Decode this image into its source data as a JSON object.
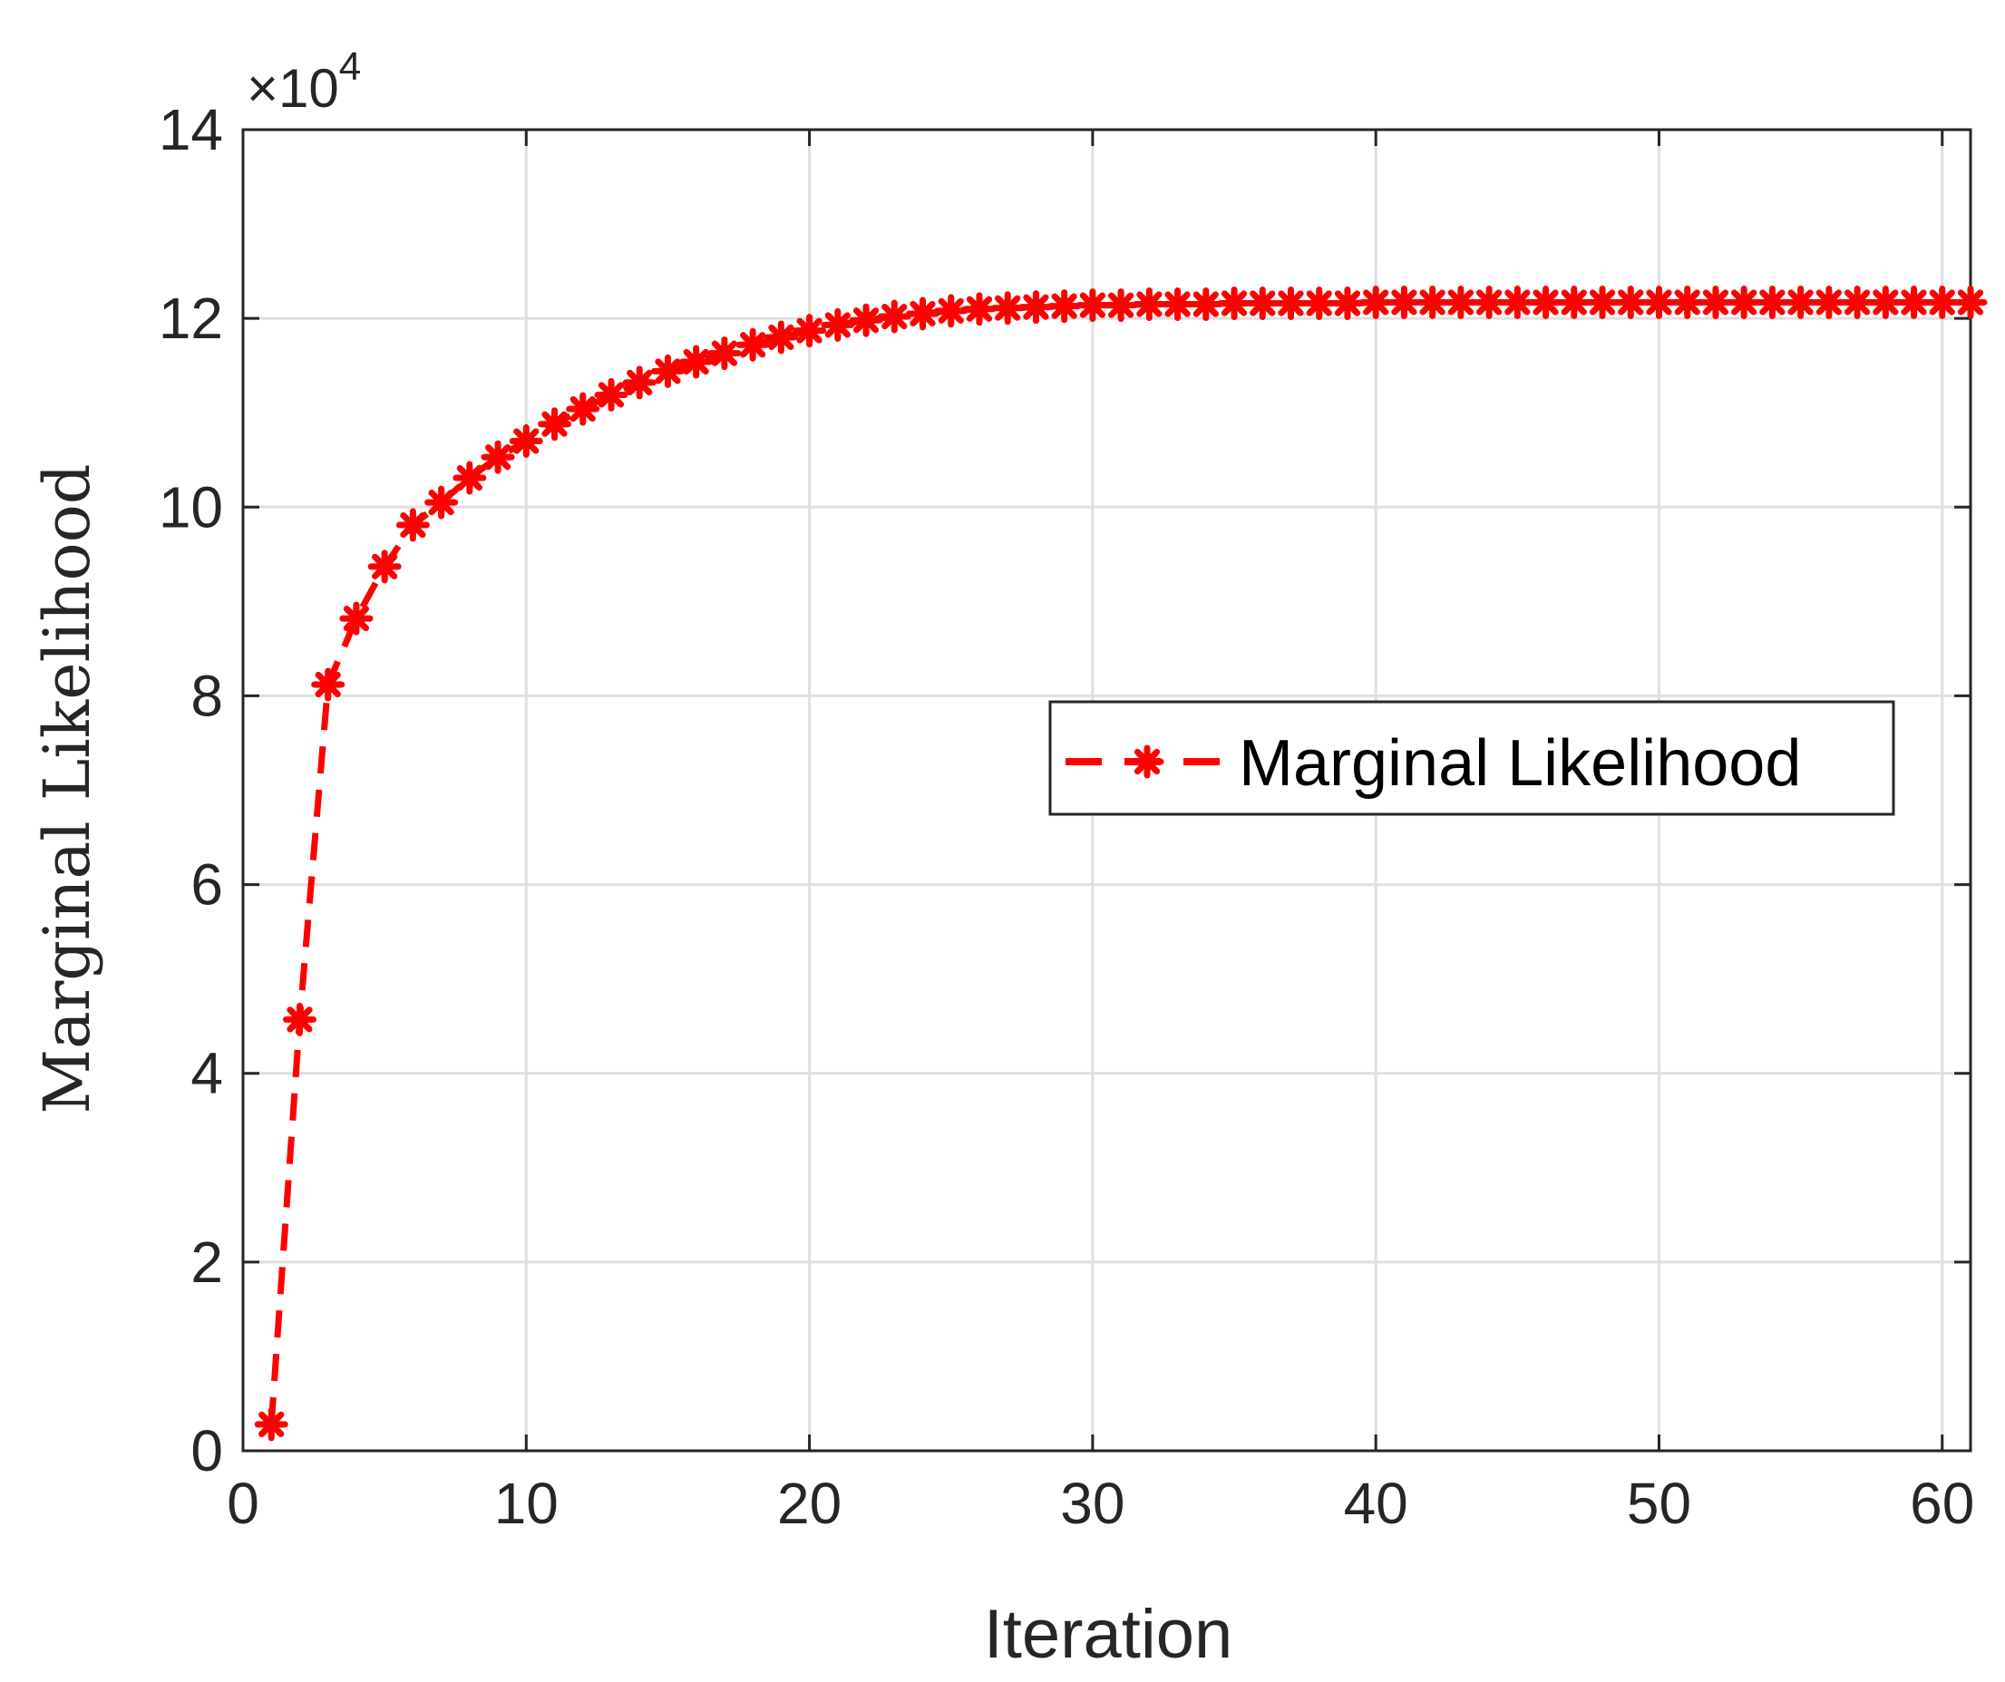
{
  "chart_data": {
    "type": "line",
    "xlabel": "Iteration",
    "ylabel": "Marginal Likelihood",
    "y_exponent_label": "×10",
    "y_exponent_power": "4",
    "y_multiplier": 10000,
    "xlim": [
      0,
      61
    ],
    "ylim": [
      0,
      14
    ],
    "x_ticks": [
      0,
      10,
      20,
      30,
      40,
      50,
      60
    ],
    "y_ticks": [
      0,
      2,
      4,
      6,
      8,
      10,
      12,
      14
    ],
    "x_tick_labels": [
      "0",
      "10",
      "20",
      "30",
      "40",
      "50",
      "60"
    ],
    "y_tick_labels": [
      "0",
      "2",
      "4",
      "6",
      "8",
      "10",
      "12",
      "14"
    ],
    "grid": true,
    "legend_position": "center-right",
    "series": [
      {
        "name": "Marginal Likelihood",
        "color": "#ff0000",
        "line_style": "dashed",
        "marker": "asterisk",
        "x": [
          1,
          2,
          3,
          4,
          5,
          6,
          7,
          8,
          9,
          10,
          11,
          12,
          13,
          14,
          15,
          16,
          17,
          18,
          19,
          20,
          21,
          22,
          23,
          24,
          25,
          26,
          27,
          28,
          29,
          30,
          31,
          32,
          33,
          34,
          35,
          36,
          37,
          38,
          39,
          40,
          41,
          42,
          43,
          44,
          45,
          46,
          47,
          48,
          49,
          50,
          51,
          52,
          53,
          54,
          55,
          56,
          57,
          58,
          59,
          60,
          61
        ],
        "values": [
          0.28,
          4.57,
          8.12,
          8.82,
          9.37,
          9.81,
          10.05,
          10.31,
          10.53,
          10.7,
          10.88,
          11.04,
          11.19,
          11.32,
          11.44,
          11.54,
          11.63,
          11.72,
          11.8,
          11.87,
          11.93,
          11.98,
          12.02,
          12.05,
          12.08,
          12.1,
          12.11,
          12.12,
          12.13,
          12.14,
          12.14,
          12.15,
          12.15,
          12.15,
          12.16,
          12.16,
          12.16,
          12.16,
          12.16,
          12.17,
          12.17,
          12.17,
          12.17,
          12.17,
          12.17,
          12.17,
          12.17,
          12.17,
          12.17,
          12.17,
          12.17,
          12.17,
          12.17,
          12.17,
          12.17,
          12.17,
          12.17,
          12.17,
          12.17,
          12.17,
          12.17
        ]
      }
    ]
  }
}
